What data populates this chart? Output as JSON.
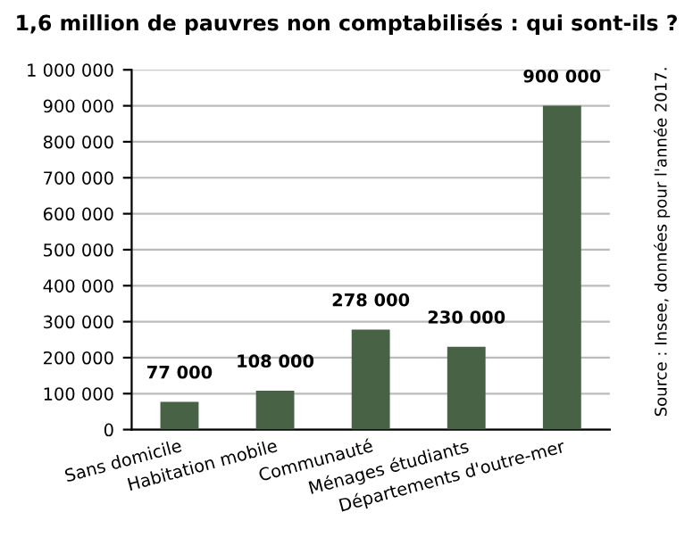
{
  "chart_data": {
    "type": "bar",
    "title": "1,6 million de pauvres non comptabilisés : qui sont-ils ?",
    "categories": [
      "Sans domicile",
      "Habitation mobile",
      "Communauté",
      "Ménages étudiants",
      "Départements d'outre-mer"
    ],
    "values": [
      77000,
      108000,
      278000,
      230000,
      900000
    ],
    "color": "#476245",
    "value_labels": [
      "77 000",
      "108 000",
      "278 000",
      "230 000",
      "900 000"
    ],
    "ylim": [
      0,
      1000000
    ],
    "yticks": [
      {
        "value": 0,
        "label": "0"
      },
      {
        "value": 100000,
        "label": "100 000"
      },
      {
        "value": 200000,
        "label": "200 000"
      },
      {
        "value": 300000,
        "label": "300 000"
      },
      {
        "value": 400000,
        "label": "400 000"
      },
      {
        "value": 500000,
        "label": "500 000"
      },
      {
        "value": 600000,
        "label": "600 000"
      },
      {
        "value": 700000,
        "label": "700 000"
      },
      {
        "value": 800000,
        "label": "800 000"
      },
      {
        "value": 900000,
        "label": "900 000"
      },
      {
        "value": 1000000,
        "label": "1 000 000"
      }
    ],
    "grid": "y",
    "annotations": [
      "Source : Insee, données pour l'année 2017."
    ]
  }
}
